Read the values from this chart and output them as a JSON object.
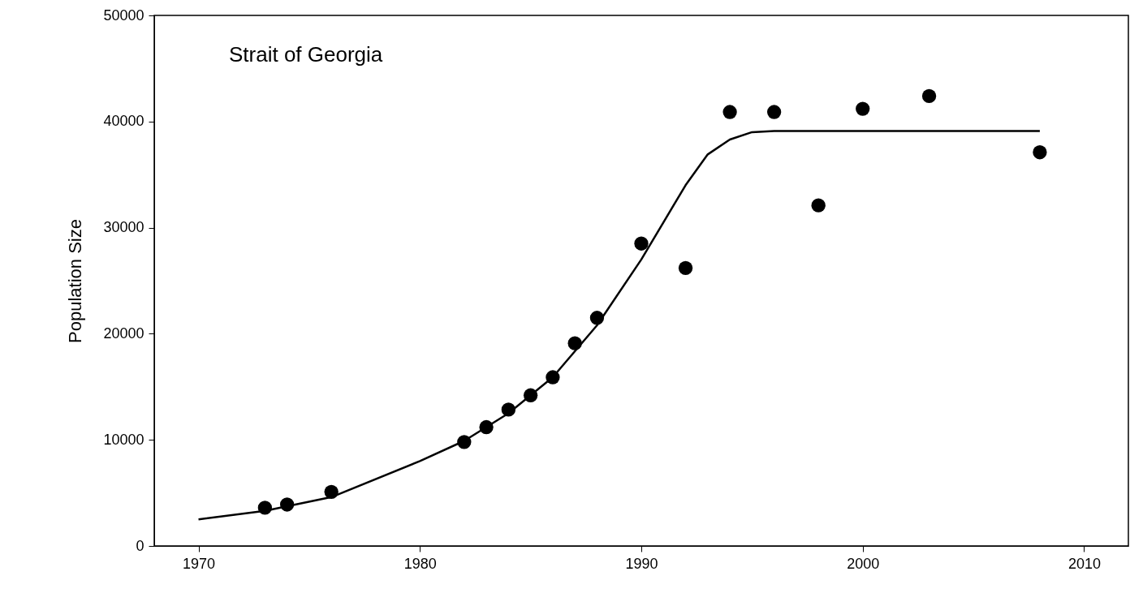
{
  "chart_data": {
    "type": "scatter",
    "ylabel": "Population Size",
    "annotations": [
      "Strait of Georgia"
    ],
    "xlim": [
      1968,
      2012
    ],
    "xticks": [
      1970,
      1980,
      1990,
      2000,
      2010
    ],
    "ylim": [
      0,
      50000
    ],
    "yticks": [
      0,
      10000,
      20000,
      30000,
      40000,
      50000
    ],
    "grid": false,
    "series": [
      {
        "marker": "circle",
        "color": "#000000",
        "x": [
          1973,
          1974,
          1976,
          1982,
          1983,
          1984,
          1985,
          1986,
          1987,
          1988,
          1990,
          1992,
          1994,
          1996,
          1998,
          2000,
          2003,
          2008
        ],
        "values": [
          3600,
          3900,
          5100,
          9800,
          11200,
          12850,
          14200,
          15900,
          19100,
          21500,
          28500,
          26200,
          40900,
          40900,
          32100,
          41200,
          42400,
          37100
        ]
      },
      {
        "type": "line",
        "line_style": "solid",
        "color": "#000000",
        "x": [
          1970,
          1973,
          1976,
          1980,
          1982,
          1984,
          1986,
          1988,
          1990,
          1991,
          1992,
          1993,
          1994,
          1995,
          1996,
          2000,
          2008
        ],
        "values": [
          2500,
          3300,
          4600,
          8000,
          9900,
          12500,
          15900,
          20800,
          27000,
          30500,
          34000,
          36900,
          38300,
          39000,
          39100,
          39100,
          39100
        ]
      }
    ]
  }
}
